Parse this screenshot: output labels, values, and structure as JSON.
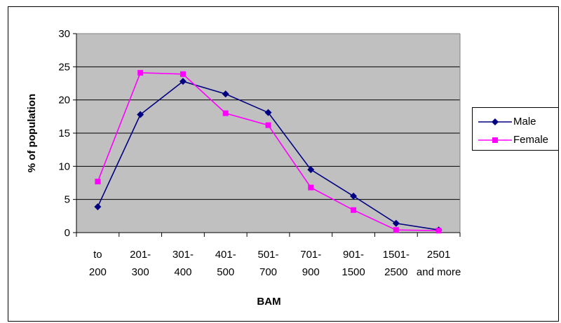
{
  "chart_data": {
    "type": "line",
    "title": "",
    "xlabel": "BAM",
    "ylabel": "% of population",
    "categories": [
      [
        "to",
        "200"
      ],
      [
        "201-",
        "300"
      ],
      [
        "301-",
        "400"
      ],
      [
        "401-",
        "500"
      ],
      [
        "501-",
        "700"
      ],
      [
        "701-",
        "900"
      ],
      [
        "901-",
        "1500"
      ],
      [
        "1501-",
        "2500"
      ],
      [
        "2501",
        "and more"
      ]
    ],
    "ylim": [
      0,
      30
    ],
    "yticks": [
      "0",
      "5",
      "10",
      "15",
      "20",
      "25",
      "30"
    ],
    "grid": true,
    "plot_background": "#c0c0c0",
    "legend_position": "right",
    "series": [
      {
        "name": "Male",
        "color": "#000080",
        "marker": "diamond",
        "values": [
          3.9,
          17.8,
          22.8,
          20.9,
          18.1,
          9.5,
          5.5,
          1.4,
          0.4
        ]
      },
      {
        "name": "Female",
        "color": "#ff00ff",
        "marker": "square",
        "values": [
          7.7,
          24.1,
          23.9,
          18.0,
          16.2,
          6.8,
          3.4,
          0.4,
          0.3
        ]
      }
    ]
  }
}
